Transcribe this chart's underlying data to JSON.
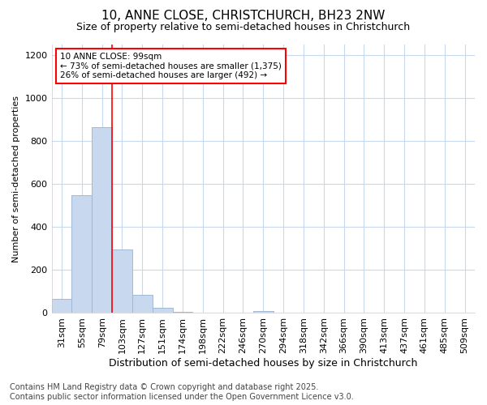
{
  "title1": "10, ANNE CLOSE, CHRISTCHURCH, BH23 2NW",
  "title2": "Size of property relative to semi-detached houses in Christchurch",
  "xlabel": "Distribution of semi-detached houses by size in Christchurch",
  "ylabel": "Number of semi-detached properties",
  "categories": [
    "31sqm",
    "55sqm",
    "79sqm",
    "103sqm",
    "127sqm",
    "151sqm",
    "174sqm",
    "198sqm",
    "222sqm",
    "246sqm",
    "270sqm",
    "294sqm",
    "318sqm",
    "342sqm",
    "366sqm",
    "390sqm",
    "413sqm",
    "437sqm",
    "461sqm",
    "485sqm",
    "509sqm"
  ],
  "values": [
    65,
    550,
    865,
    295,
    85,
    25,
    5,
    0,
    0,
    0,
    10,
    0,
    0,
    0,
    0,
    0,
    0,
    0,
    0,
    0,
    0
  ],
  "bar_color": "#c8d8ee",
  "bar_edgecolor": "#a0b8d8",
  "property_line_color": "red",
  "property_line_x": 2.5,
  "annotation_text": "10 ANNE CLOSE: 99sqm\n← 73% of semi-detached houses are smaller (1,375)\n26% of semi-detached houses are larger (492) →",
  "annotation_box_color": "red",
  "ylim": [
    0,
    1250
  ],
  "yticks": [
    0,
    200,
    400,
    600,
    800,
    1000,
    1200
  ],
  "footnote": "Contains HM Land Registry data © Crown copyright and database right 2025.\nContains public sector information licensed under the Open Government Licence v3.0.",
  "background_color": "#ffffff",
  "plot_background": "#ffffff",
  "grid_color": "#c8d8ee",
  "title1_fontsize": 11,
  "title2_fontsize": 9,
  "xlabel_fontsize": 9,
  "ylabel_fontsize": 8,
  "tick_fontsize": 8,
  "footnote_fontsize": 7
}
